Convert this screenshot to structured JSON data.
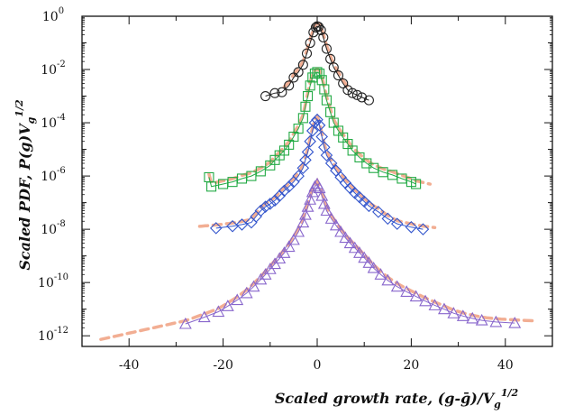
{
  "chart_data": {
    "type": "scatter",
    "title": "",
    "xlabel": "Scaled growth rate, (g-ḡ)/V",
    "xlabel_sub": "g",
    "xlabel_sup": "1/2",
    "ylabel": "Scaled PDF, P(g)V",
    "ylabel_sub": "g",
    "ylabel_sup": "1/2",
    "xlim": [
      -50,
      50
    ],
    "ylim_log10": [
      -12.4,
      0
    ],
    "y_scale": "log",
    "grid": false,
    "legend": "none",
    "x_ticks": [
      "-40",
      "-20",
      "0",
      "20",
      "40"
    ],
    "y_tick_exponents": [
      "0",
      "-2",
      "-4",
      "-6",
      "-8",
      "-10",
      "-12"
    ],
    "y_tick_base": "10",
    "series": [
      {
        "marker": "circle",
        "color": "#222222",
        "points": [
          [
            -11,
            0.001
          ],
          [
            -9,
            0.0013
          ],
          [
            -7.5,
            0.0014
          ],
          [
            -6,
            0.0025
          ],
          [
            -5,
            0.005
          ],
          [
            -4,
            0.008
          ],
          [
            -3,
            0.015
          ],
          [
            -2.2,
            0.04
          ],
          [
            -1.5,
            0.1
          ],
          [
            -0.8,
            0.25
          ],
          [
            -0.3,
            0.38
          ],
          [
            0,
            0.42
          ],
          [
            0.3,
            0.4
          ],
          [
            0.8,
            0.3
          ],
          [
            1.3,
            0.16
          ],
          [
            2,
            0.06
          ],
          [
            2.8,
            0.025
          ],
          [
            3.5,
            0.012
          ],
          [
            4.5,
            0.006
          ],
          [
            5.5,
            0.003
          ],
          [
            6.5,
            0.0017
          ],
          [
            7.5,
            0.0013
          ],
          [
            8.5,
            0.0011
          ],
          [
            9.5,
            0.0009
          ],
          [
            11,
            0.0007
          ]
        ]
      },
      {
        "marker": "square",
        "color": "#22aa44",
        "points": [
          [
            -23,
            9e-07
          ],
          [
            -22.5,
            4e-07
          ],
          [
            -20,
            5e-07
          ],
          [
            -18,
            6e-07
          ],
          [
            -16,
            8e-07
          ],
          [
            -14,
            1e-06
          ],
          [
            -12,
            1.5e-06
          ],
          [
            -10,
            2.5e-06
          ],
          [
            -9,
            4e-06
          ],
          [
            -8,
            6e-06
          ],
          [
            -7,
            9e-06
          ],
          [
            -6,
            1.5e-05
          ],
          [
            -5,
            3e-05
          ],
          [
            -4,
            6e-05
          ],
          [
            -3,
            0.00015
          ],
          [
            -2.5,
            0.0004
          ],
          [
            -2,
            0.001
          ],
          [
            -1.5,
            0.0025
          ],
          [
            -1,
            0.005
          ],
          [
            -0.5,
            0.007
          ],
          [
            0,
            0.008
          ],
          [
            0.5,
            0.007
          ],
          [
            1,
            0.004
          ],
          [
            1.5,
            0.0018
          ],
          [
            2,
            0.0007
          ],
          [
            2.8,
            0.00025
          ],
          [
            3.5,
            0.0001
          ],
          [
            4.5,
            5e-05
          ],
          [
            5.5,
            2.8e-05
          ],
          [
            6.5,
            1.6e-05
          ],
          [
            7.5,
            9e-06
          ],
          [
            9,
            5e-06
          ],
          [
            10.5,
            3e-06
          ],
          [
            12,
            2e-06
          ],
          [
            14,
            1.4e-06
          ],
          [
            16,
            1.1e-06
          ],
          [
            18,
            8e-07
          ],
          [
            20,
            6e-07
          ],
          [
            21,
            5e-07
          ]
        ]
      },
      {
        "marker": "diamond",
        "color": "#3355cc",
        "points": [
          [
            -21.5,
            1.1e-08
          ],
          [
            -18,
            1.3e-08
          ],
          [
            -16,
            1.5e-08
          ],
          [
            -14,
            1.8e-08
          ],
          [
            -13,
            3e-08
          ],
          [
            -12,
            5e-08
          ],
          [
            -11,
            7e-08
          ],
          [
            -10,
            9e-08
          ],
          [
            -9,
            1.2e-07
          ],
          [
            -8,
            1.8e-07
          ],
          [
            -7,
            2.8e-07
          ],
          [
            -6,
            4e-07
          ],
          [
            -5,
            6e-07
          ],
          [
            -4,
            1e-06
          ],
          [
            -3,
            2e-06
          ],
          [
            -2.5,
            4e-06
          ],
          [
            -2,
            8e-06
          ],
          [
            -1.5,
            2e-05
          ],
          [
            -1,
            5e-05
          ],
          [
            -0.5,
            0.0001
          ],
          [
            0,
            0.00013
          ],
          [
            0.5,
            8e-05
          ],
          [
            1,
            3e-05
          ],
          [
            1.5,
            1.2e-05
          ],
          [
            2,
            6e-06
          ],
          [
            3,
            3e-06
          ],
          [
            4,
            1.6e-06
          ],
          [
            5,
            9e-07
          ],
          [
            6,
            5.5e-07
          ],
          [
            7,
            3.5e-07
          ],
          [
            8,
            2.3e-07
          ],
          [
            9,
            1.6e-07
          ],
          [
            10,
            1.1e-07
          ],
          [
            11,
            7.5e-08
          ],
          [
            13,
            4.5e-08
          ],
          [
            15,
            2.5e-08
          ],
          [
            17,
            1.6e-08
          ],
          [
            20,
            1.2e-08
          ],
          [
            22.5,
            1e-08
          ]
        ]
      },
      {
        "marker": "triangle",
        "color": "#8866cc",
        "points": [
          [
            -28,
            2.8e-12
          ],
          [
            -24,
            5e-12
          ],
          [
            -21,
            8e-12
          ],
          [
            -19,
            1.3e-11
          ],
          [
            -17,
            2.2e-11
          ],
          [
            -15,
            4e-11
          ],
          [
            -13.5,
            7e-11
          ],
          [
            -12,
            1.3e-10
          ],
          [
            -11,
            2e-10
          ],
          [
            -10,
            3.2e-10
          ],
          [
            -9,
            5e-10
          ],
          [
            -8,
            8e-10
          ],
          [
            -7,
            1.3e-09
          ],
          [
            -6,
            2.2e-09
          ],
          [
            -5,
            4e-09
          ],
          [
            -4,
            8e-09
          ],
          [
            -3,
            1.8e-08
          ],
          [
            -2.5,
            3.5e-08
          ],
          [
            -2,
            7e-08
          ],
          [
            -1.5,
            1.3e-07
          ],
          [
            -1,
            2.5e-07
          ],
          [
            -0.5,
            4e-07
          ],
          [
            0,
            5e-07
          ],
          [
            0.5,
            3.5e-07
          ],
          [
            1,
            1.8e-07
          ],
          [
            1.5,
            9e-08
          ],
          [
            2,
            5e-08
          ],
          [
            3,
            2.5e-08
          ],
          [
            4,
            1.4e-08
          ],
          [
            5,
            8e-09
          ],
          [
            6,
            4.8e-09
          ],
          [
            7,
            3e-09
          ],
          [
            8,
            2e-09
          ],
          [
            9,
            1.3e-09
          ],
          [
            10,
            8.5e-10
          ],
          [
            11,
            5.5e-10
          ],
          [
            12,
            3.5e-10
          ],
          [
            13.5,
            2e-10
          ],
          [
            15,
            1.2e-10
          ],
          [
            17,
            7e-11
          ],
          [
            19,
            4.5e-11
          ],
          [
            21,
            3e-11
          ],
          [
            23,
            2e-11
          ],
          [
            25,
            1.4e-11
          ],
          [
            27,
            1e-11
          ],
          [
            29,
            7e-12
          ],
          [
            31,
            5.5e-12
          ],
          [
            33,
            4.5e-12
          ],
          [
            35,
            3.8e-12
          ],
          [
            38,
            3.3e-12
          ],
          [
            42,
            3e-12
          ]
        ]
      }
    ],
    "fit_color": "#f0a080",
    "fits": [
      {
        "name_ref": "circle",
        "peak": 0.35,
        "left": [
          -7,
          7
        ],
        "scale": 1.6
      },
      {
        "name_ref": "square",
        "peak": 0.008,
        "left": [
          -23,
          24
        ],
        "scale": 1.6
      },
      {
        "name_ref": "diamond",
        "peak": 0.00013,
        "left": [
          -25,
          25
        ],
        "scale": 1.6
      },
      {
        "name_ref": "triangle",
        "peak": 5e-07,
        "left": [
          -46,
          46
        ],
        "scale": 1.6
      }
    ]
  }
}
